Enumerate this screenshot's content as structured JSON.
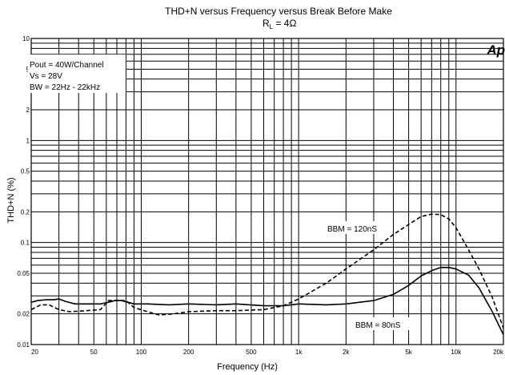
{
  "chart_data": {
    "type": "line",
    "title": "THD+N versus Frequency versus Break Before Make",
    "subtitle": {
      "main": "R",
      "sub": "L",
      "rest": " = 4Ω"
    },
    "xlabel": "Frequency (Hz)",
    "ylabel": "THD+N (%)",
    "x_scale": "log",
    "y_scale": "log",
    "xlim": [
      20,
      20000
    ],
    "ylim": [
      0.01,
      10
    ],
    "grid": true,
    "x_ticks": [
      {
        "v": 20,
        "label": "20"
      },
      {
        "v": 50,
        "label": "50"
      },
      {
        "v": 100,
        "label": "100"
      },
      {
        "v": 200,
        "label": "200"
      },
      {
        "v": 500,
        "label": "500"
      },
      {
        "v": 1000,
        "label": "1k"
      },
      {
        "v": 2000,
        "label": "2k"
      },
      {
        "v": 5000,
        "label": "5k"
      },
      {
        "v": 10000,
        "label": "10k"
      },
      {
        "v": 20000,
        "label": "20k"
      }
    ],
    "y_ticks": [
      {
        "v": 10,
        "label": "10"
      },
      {
        "v": 5,
        "label": "5"
      },
      {
        "v": 2,
        "label": "2"
      },
      {
        "v": 1,
        "label": "1"
      },
      {
        "v": 0.5,
        "label": "0.5"
      },
      {
        "v": 0.2,
        "label": "0.2"
      },
      {
        "v": 0.1,
        "label": "0.1"
      },
      {
        "v": 0.05,
        "label": "0.05"
      },
      {
        "v": 0.02,
        "label": "0.02"
      },
      {
        "v": 0.01,
        "label": "0.01"
      }
    ],
    "info_box": [
      "Pout = 40W/Channel",
      "Vs = 28V",
      "BW = 22Hz - 22kHz"
    ],
    "logo": "Ap",
    "series": [
      {
        "name": "BBM = 80nS",
        "style": "solid",
        "color": "#000000",
        "points": [
          [
            20,
            0.026
          ],
          [
            22,
            0.027
          ],
          [
            25,
            0.0275
          ],
          [
            28,
            0.0275
          ],
          [
            30,
            0.028
          ],
          [
            33,
            0.0265
          ],
          [
            38,
            0.025
          ],
          [
            45,
            0.025
          ],
          [
            55,
            0.025
          ],
          [
            62,
            0.026
          ],
          [
            68,
            0.027
          ],
          [
            75,
            0.027
          ],
          [
            82,
            0.026
          ],
          [
            90,
            0.025
          ],
          [
            110,
            0.025
          ],
          [
            150,
            0.0245
          ],
          [
            200,
            0.025
          ],
          [
            300,
            0.0245
          ],
          [
            400,
            0.025
          ],
          [
            600,
            0.024
          ],
          [
            800,
            0.024
          ],
          [
            1000,
            0.025
          ],
          [
            1500,
            0.0245
          ],
          [
            2000,
            0.025
          ],
          [
            3000,
            0.027
          ],
          [
            4000,
            0.031
          ],
          [
            5000,
            0.038
          ],
          [
            6000,
            0.047
          ],
          [
            7000,
            0.053
          ],
          [
            8000,
            0.057
          ],
          [
            9000,
            0.057
          ],
          [
            10000,
            0.055
          ],
          [
            12000,
            0.048
          ],
          [
            14000,
            0.036
          ],
          [
            17000,
            0.021
          ],
          [
            20000,
            0.0125
          ]
        ]
      },
      {
        "name": "BBM = 120nS",
        "style": "dashed",
        "color": "#000000",
        "points": [
          [
            20,
            0.022
          ],
          [
            23,
            0.0245
          ],
          [
            26,
            0.0245
          ],
          [
            30,
            0.022
          ],
          [
            35,
            0.021
          ],
          [
            45,
            0.0215
          ],
          [
            55,
            0.022
          ],
          [
            62,
            0.027
          ],
          [
            70,
            0.027
          ],
          [
            80,
            0.027
          ],
          [
            90,
            0.023
          ],
          [
            110,
            0.021
          ],
          [
            130,
            0.0195
          ],
          [
            160,
            0.02
          ],
          [
            200,
            0.021
          ],
          [
            300,
            0.0215
          ],
          [
            400,
            0.0215
          ],
          [
            600,
            0.022
          ],
          [
            800,
            0.024
          ],
          [
            1000,
            0.028
          ],
          [
            1500,
            0.04
          ],
          [
            2000,
            0.055
          ],
          [
            3000,
            0.085
          ],
          [
            4000,
            0.12
          ],
          [
            5000,
            0.15
          ],
          [
            6000,
            0.18
          ],
          [
            7000,
            0.19
          ],
          [
            8000,
            0.188
          ],
          [
            9000,
            0.17
          ],
          [
            10000,
            0.14
          ],
          [
            12000,
            0.085
          ],
          [
            14000,
            0.055
          ],
          [
            17000,
            0.029
          ],
          [
            20000,
            0.0145
          ]
        ]
      }
    ]
  }
}
